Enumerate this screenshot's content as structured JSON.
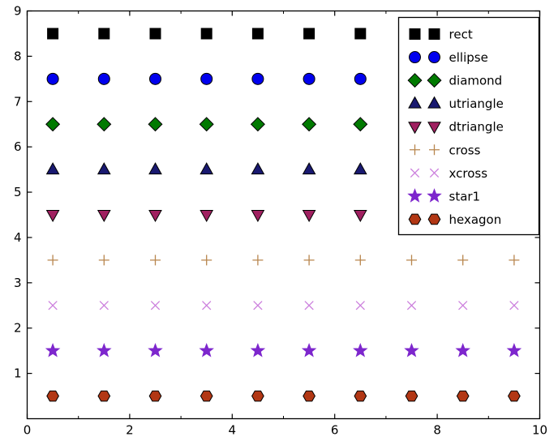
{
  "figure": {
    "background": "#ffffff",
    "frame_color": "#000000"
  },
  "chart_data": {
    "type": "scatter",
    "title": "",
    "xlabel": "",
    "ylabel": "",
    "xlim": [
      0,
      10
    ],
    "ylim": [
      0,
      9
    ],
    "xticks": [
      0,
      2,
      4,
      6,
      8,
      10
    ],
    "yticks": [
      1,
      2,
      3,
      4,
      5,
      6,
      7,
      8,
      9
    ],
    "grid": false,
    "legend_position": "upper right",
    "x": [
      0.5,
      1.5,
      2.5,
      3.5,
      4.5,
      5.5,
      6.5,
      7.5,
      8.5,
      9.5
    ],
    "series": [
      {
        "name": "rect",
        "marker": "rect",
        "y": 8.5,
        "color": "#000000"
      },
      {
        "name": "ellipse",
        "marker": "ellipse",
        "y": 7.5,
        "color": "#0000ee"
      },
      {
        "name": "diamond",
        "marker": "diamond",
        "y": 6.5,
        "color": "#007a00"
      },
      {
        "name": "utriangle",
        "marker": "utriangle",
        "y": 5.5,
        "color": "#191970"
      },
      {
        "name": "dtriangle",
        "marker": "dtriangle",
        "y": 4.5,
        "color": "#a02060"
      },
      {
        "name": "cross",
        "marker": "cross",
        "y": 3.5,
        "color": "#b8864e"
      },
      {
        "name": "xcross",
        "marker": "xcross",
        "y": 2.5,
        "color": "#cc80dd"
      },
      {
        "name": "star1",
        "marker": "star1",
        "y": 1.5,
        "color": "#7d26cd"
      },
      {
        "name": "hexagon",
        "marker": "hexagon",
        "y": 0.5,
        "color": "#b23714"
      }
    ]
  }
}
